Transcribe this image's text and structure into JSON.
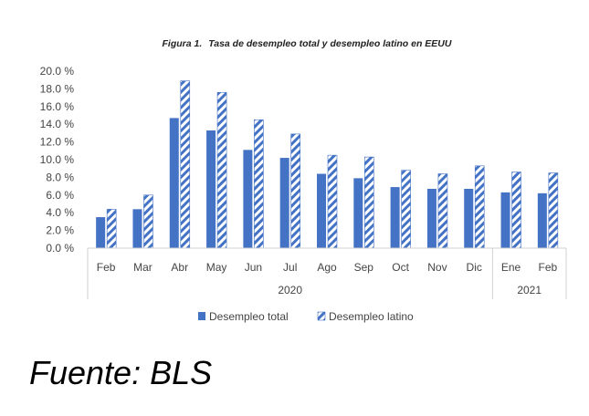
{
  "chart_data": {
    "type": "bar",
    "title_prefix": "Figura 1.",
    "title": "Tasa de desempleo total y desempleo latino en EEUU",
    "categories": [
      "Feb",
      "Mar",
      "Abr",
      "May",
      "Jun",
      "Jul",
      "Ago",
      "Sep",
      "Oct",
      "Nov",
      "Dic",
      "Ene",
      "Feb"
    ],
    "category_groups": [
      {
        "label": "2020",
        "count": 11
      },
      {
        "label": "2021",
        "count": 2
      }
    ],
    "series": [
      {
        "name": "Desempleo total",
        "values": [
          3.5,
          4.4,
          14.7,
          13.3,
          11.1,
          10.2,
          8.4,
          7.9,
          6.9,
          6.7,
          6.7,
          6.3,
          6.2
        ],
        "color": "#4472C4",
        "pattern": "solid"
      },
      {
        "name": "Desempleo latino",
        "values": [
          4.4,
          6.0,
          18.9,
          17.6,
          14.5,
          12.9,
          10.5,
          10.3,
          8.8,
          8.4,
          9.3,
          8.6,
          8.5
        ],
        "color": "#4472C4",
        "pattern": "diagonal-stripes"
      }
    ],
    "ylim": [
      0,
      20
    ],
    "yticks": [
      "0.0 %",
      "2.0 %",
      "4.0 %",
      "6.0 %",
      "8.0 %",
      "10.0 %",
      "12.0 %",
      "14.0 %",
      "16.0 %",
      "18.0 %",
      "20.0 %"
    ],
    "grid": false,
    "legend_position": "bottom"
  },
  "source_text": "Fuente: BLS"
}
